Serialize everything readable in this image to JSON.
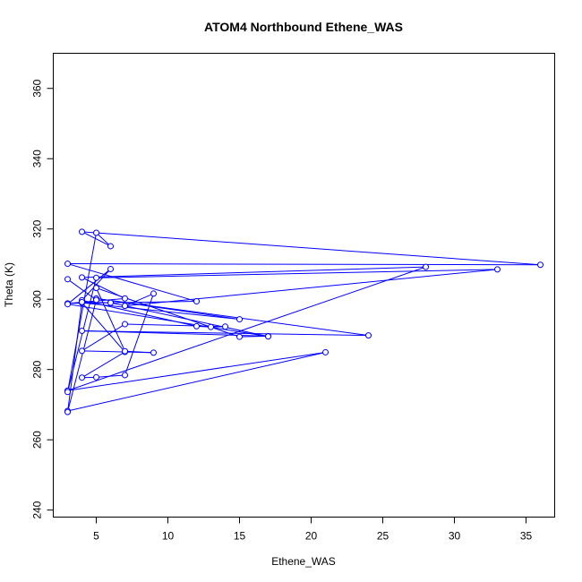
{
  "chart_data": {
    "type": "line",
    "title": "ATOM4 Northbound Ethene_WAS",
    "xlabel": "Ethene_WAS",
    "ylabel": "Theta (K)",
    "xlim": [
      2.0,
      37.0
    ],
    "ylim": [
      238.0,
      370.0
    ],
    "xticks": [
      "5",
      "10",
      "15",
      "20",
      "25",
      "30",
      "35"
    ],
    "yticks": [
      "240",
      "260",
      "280",
      "300",
      "320",
      "340",
      "360"
    ],
    "grid": false,
    "legend": "none",
    "series_color": "#0000ff",
    "marker": "open-circle",
    "series": [
      {
        "values": [
          [
            3,
            268.2
          ],
          [
            21,
            284.9
          ],
          [
            3,
            274.0
          ],
          [
            28,
            309.2
          ],
          [
            4,
            306.2
          ],
          [
            7,
            300.2
          ],
          [
            3,
            298.8
          ],
          [
            12,
            299.4
          ],
          [
            3,
            310.1
          ],
          [
            36,
            309.8
          ],
          [
            4,
            319.2
          ],
          [
            6,
            315.1
          ],
          [
            5,
            318.9
          ],
          [
            3,
            273.6
          ],
          [
            5,
            306.1
          ],
          [
            33,
            308.5
          ],
          [
            7,
            298.1
          ],
          [
            9,
            301.6
          ],
          [
            7,
            278.4
          ],
          [
            5,
            277.8
          ],
          [
            4,
            277.7
          ],
          [
            7,
            285.0
          ],
          [
            4,
            299.0
          ],
          [
            15,
            294.3
          ],
          [
            5,
            300.2
          ],
          [
            24,
            289.7
          ],
          [
            4,
            291.0
          ],
          [
            17,
            289.5
          ],
          [
            15,
            289.3
          ],
          [
            5,
            303.2
          ],
          [
            7,
            285.2
          ],
          [
            9,
            284.8
          ],
          [
            4,
            285.3
          ],
          [
            7,
            292.9
          ],
          [
            14,
            292.2
          ],
          [
            13,
            292.1
          ],
          [
            12,
            292.3
          ],
          [
            4,
            299.7
          ],
          [
            6,
            308.6
          ],
          [
            3,
            298.6
          ],
          [
            17,
            289.4
          ],
          [
            6,
            299.0
          ],
          [
            4,
            299.2
          ],
          [
            3,
            267.9
          ],
          [
            5,
            299.8
          ],
          [
            3,
            305.7
          ]
        ]
      }
    ]
  }
}
